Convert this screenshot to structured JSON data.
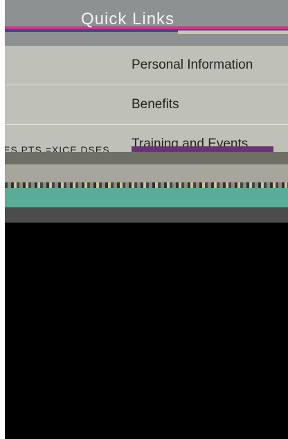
{
  "header": {
    "title": "Quick Links"
  },
  "menu": {
    "items": [
      {
        "label": "Personal Information"
      },
      {
        "label": "Benefits"
      },
      {
        "label": "Training and Events"
      }
    ]
  },
  "overlay_text": "ES PTS =XICE DSES"
}
